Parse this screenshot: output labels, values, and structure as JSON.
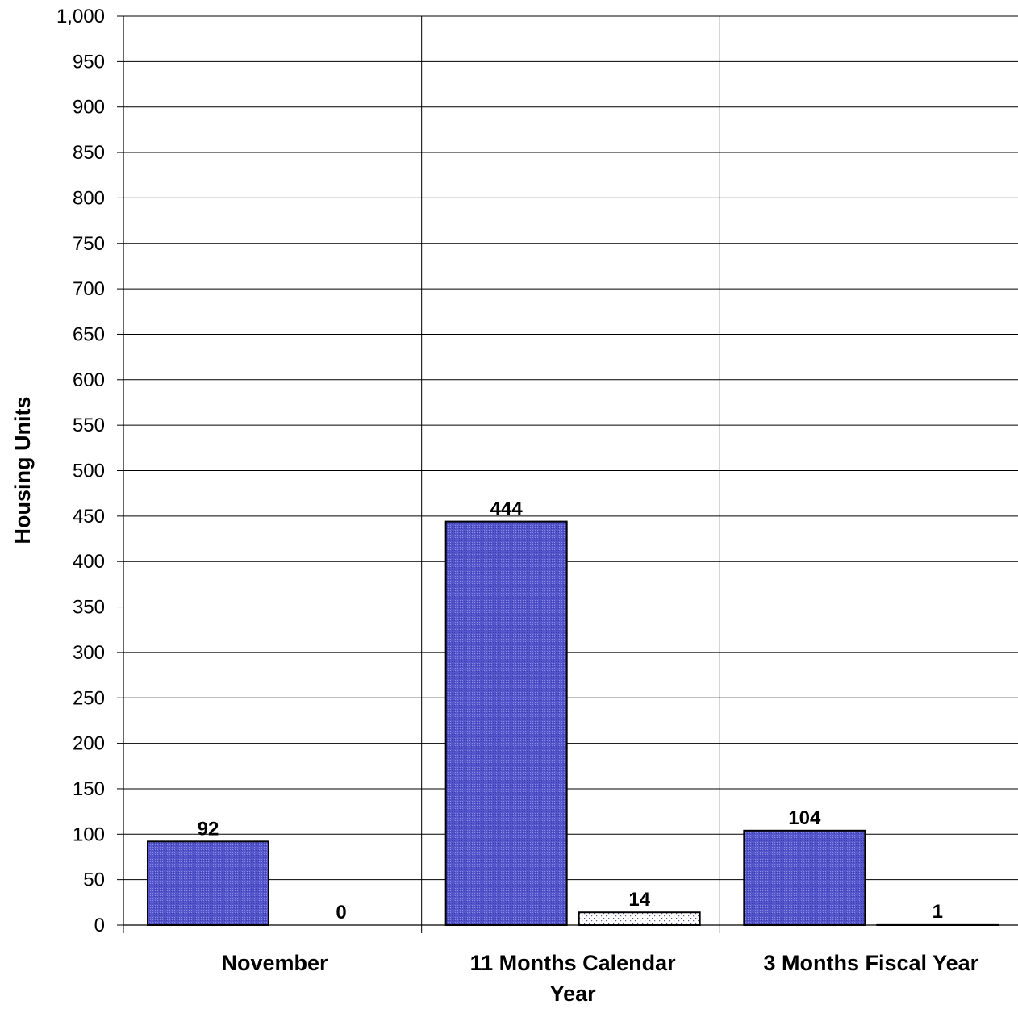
{
  "chart_data": {
    "type": "bar",
    "title": "",
    "xlabel": "",
    "ylabel": "Housing Units",
    "categories": [
      [
        "November"
      ],
      [
        "11 Months Calendar",
        "Year"
      ],
      [
        "3 Months Fiscal Year"
      ]
    ],
    "series": [
      {
        "values": [
          92,
          444,
          104
        ],
        "color": "#5353c8",
        "pattern": "fine-dot"
      },
      {
        "values": [
          0,
          14,
          1
        ],
        "color": "#ffffff",
        "pattern": "sparse-dot"
      }
    ],
    "data_labels": [
      [
        "92",
        "444",
        "104"
      ],
      [
        "0",
        "14",
        "1"
      ]
    ],
    "ylim": [
      0,
      1000
    ],
    "yticks": [
      0,
      50,
      100,
      150,
      200,
      250,
      300,
      350,
      400,
      450,
      500,
      550,
      600,
      650,
      700,
      750,
      800,
      850,
      900,
      950,
      1000
    ],
    "ytick_labels": [
      "0",
      "50",
      "100",
      "150",
      "200",
      "250",
      "300",
      "350",
      "400",
      "450",
      "500",
      "550",
      "600",
      "650",
      "700",
      "750",
      "800",
      "850",
      "900",
      "950",
      "1,000"
    ],
    "grid": true,
    "legend": "none"
  }
}
